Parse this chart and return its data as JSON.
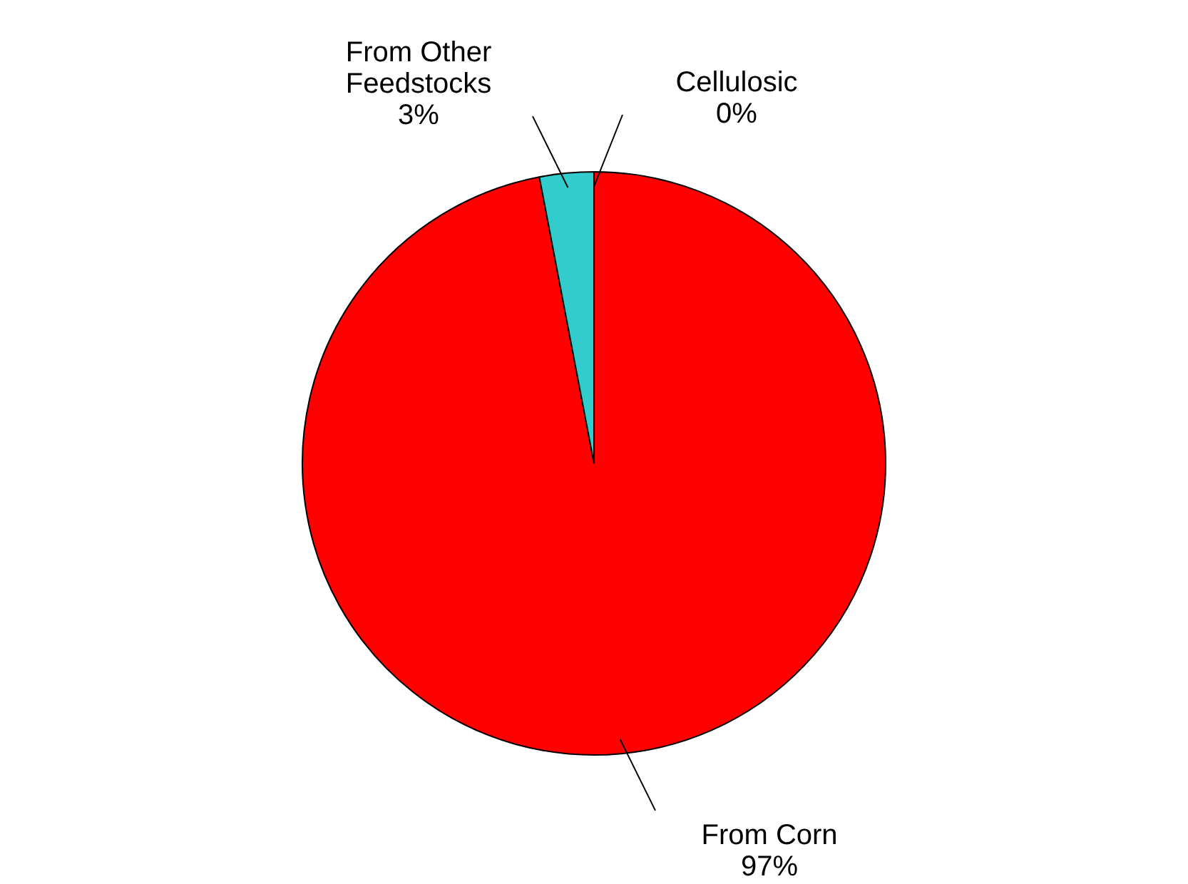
{
  "chart_data": {
    "type": "pie",
    "categories": [
      "Cellulosic",
      "From Corn",
      "From Other Feedstocks"
    ],
    "values": [
      0,
      97,
      3
    ],
    "value_labels": [
      "0%",
      "97%",
      "3%"
    ],
    "colors": [
      "#9999ff",
      "#ff0000",
      "#33cccc"
    ],
    "legend": false
  }
}
